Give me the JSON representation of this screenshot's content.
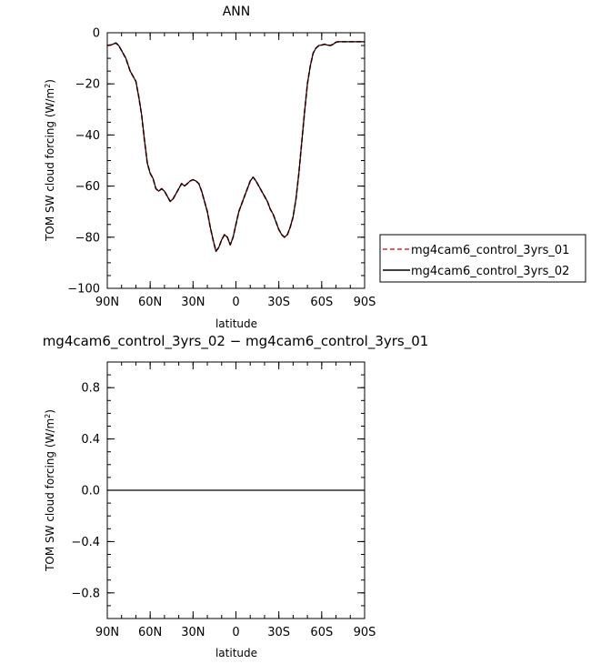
{
  "chart_data": [
    {
      "type": "line",
      "title": "ANN",
      "xlabel": "latitude",
      "ylabel": "TOM SW cloud forcing (W/m",
      "ylabel_superscript": "2",
      "ylabel_close": ")",
      "xlim": [
        90,
        -90
      ],
      "ylim": [
        -100,
        0
      ],
      "xtick_labels": [
        "90N",
        "60N",
        "30N",
        "0",
        "30S",
        "60S",
        "90S"
      ],
      "xtick_values": [
        90,
        60,
        30,
        0,
        -30,
        -60,
        -90
      ],
      "yticks": [
        0,
        -20,
        -40,
        -60,
        -80,
        -100
      ],
      "ytick_labels": [
        "0",
        "−20",
        "−40",
        "−60",
        "−80",
        "−100"
      ],
      "x": [
        90,
        87,
        84,
        82,
        80,
        77,
        74,
        72,
        70,
        68,
        66,
        64,
        62,
        60,
        58,
        56,
        54,
        52,
        50,
        48,
        46,
        44,
        42,
        40,
        38,
        36,
        34,
        32,
        30,
        28,
        26,
        24,
        22,
        20,
        18,
        16,
        14,
        12,
        10,
        8,
        6,
        4,
        2,
        0,
        -2,
        -4,
        -6,
        -8,
        -10,
        -12,
        -14,
        -16,
        -18,
        -20,
        -22,
        -24,
        -26,
        -28,
        -30,
        -32,
        -34,
        -36,
        -38,
        -40,
        -42,
        -44,
        -46,
        -48,
        -50,
        -52,
        -54,
        -56,
        -58,
        -60,
        -62,
        -64,
        -66,
        -68,
        -70,
        -72,
        -74,
        -76,
        -78,
        -80,
        -82,
        -84,
        -86,
        -88,
        -90
      ],
      "series": [
        {
          "name": "mg4cam6_control_3yrs_01",
          "color": "#e4262b",
          "style": "dashed",
          "values": [
            -5,
            -4.7,
            -4,
            -5,
            -7,
            -10,
            -15,
            -17,
            -19,
            -25,
            -32,
            -42,
            -51,
            -55,
            -57,
            -61,
            -62,
            -61,
            -62,
            -64,
            -66,
            -65,
            -63,
            -61,
            -59,
            -60,
            -59,
            -58,
            -57.5,
            -58,
            -59,
            -62,
            -66,
            -70,
            -76,
            -81,
            -85.5,
            -84,
            -81,
            -79,
            -80,
            -83,
            -80,
            -75,
            -70,
            -67,
            -64,
            -61,
            -58,
            -56.5,
            -58,
            -60,
            -62,
            -64,
            -66,
            -69,
            -71,
            -74,
            -77,
            -79,
            -80,
            -79,
            -76,
            -72,
            -65,
            -55,
            -43,
            -31,
            -20,
            -13,
            -8,
            -6,
            -5,
            -4.8,
            -4.5,
            -4.8,
            -5,
            -4.5,
            -3.7,
            -3.5,
            -3.5,
            -3.5,
            -3.5,
            -3.5,
            -3.5,
            -3.5,
            -3.5,
            -3.5,
            -3.5
          ]
        },
        {
          "name": "mg4cam6_control_3yrs_02",
          "color": "#000000",
          "style": "solid",
          "values": [
            -5,
            -4.7,
            -4,
            -5,
            -7,
            -10,
            -15,
            -17,
            -19,
            -25,
            -32,
            -42,
            -51,
            -55,
            -57,
            -61,
            -62,
            -61,
            -62,
            -64,
            -66,
            -65,
            -63,
            -61,
            -59,
            -60,
            -59,
            -58,
            -57.5,
            -58,
            -59,
            -62,
            -66,
            -70,
            -76,
            -81,
            -85.5,
            -84,
            -81,
            -79,
            -80,
            -83,
            -80,
            -75,
            -70,
            -67,
            -64,
            -61,
            -58,
            -56.5,
            -58,
            -60,
            -62,
            -64,
            -66,
            -69,
            -71,
            -74,
            -77,
            -79,
            -80,
            -79,
            -76,
            -72,
            -65,
            -55,
            -43,
            -31,
            -20,
            -13,
            -8,
            -6,
            -5,
            -4.8,
            -4.5,
            -4.8,
            -5,
            -4.5,
            -3.7,
            -3.5,
            -3.5,
            -3.5,
            -3.5,
            -3.5,
            -3.5,
            -3.5,
            -3.5,
            -3.5,
            -3.5
          ]
        }
      ],
      "legend": "right"
    },
    {
      "type": "line",
      "title": "mg4cam6_control_3yrs_02 − mg4cam6_control_3yrs_01",
      "xlabel": "latitude",
      "ylabel": "TOM SW cloud forcing (W/m",
      "ylabel_superscript": "2",
      "ylabel_close": ")",
      "xlim": [
        90,
        -90
      ],
      "ylim": [
        -1.0,
        1.0
      ],
      "xtick_labels": [
        "90N",
        "60N",
        "30N",
        "0",
        "30S",
        "60S",
        "90S"
      ],
      "xtick_values": [
        90,
        60,
        30,
        0,
        -30,
        -60,
        -90
      ],
      "yticks": [
        0.8,
        0.4,
        0.0,
        -0.4,
        -0.8
      ],
      "ytick_labels": [
        "0.8",
        "0.4",
        "0.0",
        "−0.4",
        "−0.8"
      ],
      "x": [
        90,
        -90
      ],
      "series": [
        {
          "color": "#000000",
          "style": "solid",
          "values": [
            0,
            0
          ]
        }
      ]
    }
  ]
}
